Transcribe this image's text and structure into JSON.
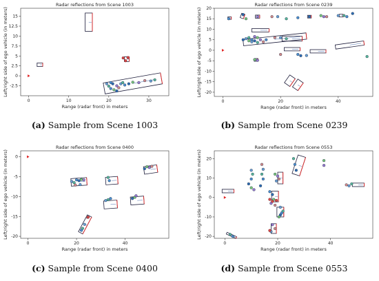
{
  "figure": {
    "captions": [
      {
        "letter": "(a)",
        "text": "Sample from Scene 1003"
      },
      {
        "letter": "(b)",
        "text": "Sample from Scene 0239"
      },
      {
        "letter": "(c)",
        "text": "Sample from Scene 0400"
      },
      {
        "letter": "(d)",
        "text": "Sample from Scene 0553"
      }
    ]
  },
  "chart_data": [
    {
      "type": "scatter",
      "title": "Radar reflections from Scene 1003",
      "xlabel": "Range (radar front) in meters",
      "ylabel": "Left/right side of ego vehicle (in meters)",
      "xlim": [
        -2,
        35
      ],
      "ylim": [
        -5,
        17
      ],
      "xticks": [
        0,
        10,
        20,
        30
      ],
      "yticks": [
        -2.5,
        0,
        2.5,
        5,
        7.5,
        10,
        12.5,
        15
      ],
      "ego": [
        0,
        0
      ],
      "points": [
        [
          19.5,
          -2
        ],
        [
          20,
          -2.6
        ],
        [
          20.5,
          -3.2
        ],
        [
          21,
          -2
        ],
        [
          21.3,
          -3.5
        ],
        [
          22,
          -2.5
        ],
        [
          22.5,
          -3
        ],
        [
          23,
          -2
        ],
        [
          23.5,
          -1.7
        ],
        [
          24,
          -2.3
        ],
        [
          25,
          -2
        ],
        [
          26,
          -1.6
        ],
        [
          27.5,
          -1.7
        ],
        [
          29,
          -1.2
        ],
        [
          30.5,
          -1.3
        ],
        [
          31.5,
          -1
        ],
        [
          20.5,
          -1.7
        ],
        [
          22,
          -3.8
        ]
      ],
      "red_points": [
        [
          23.6,
          4.5
        ],
        [
          24.2,
          3.8
        ],
        [
          24.8,
          4.6
        ]
      ],
      "boxes": [
        {
          "cx": 2.8,
          "cy": 2.8,
          "len": 1.4,
          "wid": 0.9,
          "angle": 0
        },
        {
          "cx": 15,
          "cy": 13.5,
          "len": 1.8,
          "wid": 4.6,
          "angle": 0
        },
        {
          "cx": 24.5,
          "cy": 4.2,
          "len": 1.2,
          "wid": 1.2,
          "angle": 0
        },
        {
          "cx": 26,
          "cy": -1.9,
          "len": 14.5,
          "wid": 2.8,
          "angle": 10
        }
      ]
    },
    {
      "type": "scatter",
      "title": "Radar reflections from Scene 0239",
      "xlabel": "Range (radar front) in meters",
      "ylabel": "Left/right side of ego vehicle (in meters)",
      "xlim": [
        -3,
        52
      ],
      "ylim": [
        -22,
        20
      ],
      "xticks": [
        0,
        20,
        40
      ],
      "yticks": [
        -20,
        -15,
        -10,
        -5,
        0,
        5,
        10,
        15,
        20
      ],
      "ego": [
        0,
        0
      ],
      "points": [
        [
          8,
          5.5
        ],
        [
          9,
          6
        ],
        [
          10,
          5
        ],
        [
          11,
          4.5
        ],
        [
          12,
          6
        ],
        [
          13,
          5
        ],
        [
          14,
          4
        ],
        [
          10,
          4
        ],
        [
          12,
          3.7
        ],
        [
          15,
          5
        ],
        [
          7,
          5
        ],
        [
          9,
          4.5
        ],
        [
          11,
          6.5
        ],
        [
          18,
          6
        ],
        [
          20,
          6
        ],
        [
          22,
          5.5
        ],
        [
          2,
          15
        ],
        [
          7,
          17
        ],
        [
          8,
          15
        ],
        [
          12,
          16
        ],
        [
          17,
          16
        ],
        [
          19,
          16
        ],
        [
          22,
          15
        ],
        [
          26,
          15.5
        ],
        [
          30,
          16
        ],
        [
          34,
          16.5
        ],
        [
          35,
          16
        ],
        [
          36,
          16
        ],
        [
          40,
          16.5
        ],
        [
          42,
          16.5
        ],
        [
          43,
          16
        ],
        [
          45,
          17.5
        ],
        [
          11,
          -4.5
        ],
        [
          12,
          -4.8
        ],
        [
          20,
          -2
        ],
        [
          29,
          -2.5
        ],
        [
          50,
          -3
        ],
        [
          26,
          -2
        ],
        [
          27,
          -2.6
        ]
      ],
      "red_points": [],
      "boxes": [
        {
          "cx": 2.3,
          "cy": 15.3,
          "len": 1.2,
          "wid": 1.2,
          "angle": 0
        },
        {
          "cx": 6.8,
          "cy": 16.3,
          "len": 1.2,
          "wid": 2.2,
          "angle": -20
        },
        {
          "cx": 12,
          "cy": 16,
          "len": 1.5,
          "wid": 1.5,
          "angle": 0
        },
        {
          "cx": 13,
          "cy": 9.5,
          "len": 6,
          "wid": 1.6,
          "angle": 0
        },
        {
          "cx": 18,
          "cy": 5.2,
          "len": 22,
          "wid": 3,
          "angle": 6
        },
        {
          "cx": 24,
          "cy": 5.5,
          "len": 7,
          "wid": 2.3,
          "angle": 0
        },
        {
          "cx": 24,
          "cy": 0.5,
          "len": 5.5,
          "wid": 1.6,
          "angle": 0
        },
        {
          "cx": 33,
          "cy": -0.5,
          "len": 5.5,
          "wid": 1.6,
          "angle": 0
        },
        {
          "cx": 44,
          "cy": 2.5,
          "len": 10,
          "wid": 2,
          "angle": 8
        },
        {
          "cx": 23.2,
          "cy": -14.5,
          "len": 2.3,
          "wid": 4.5,
          "angle": -35
        },
        {
          "cx": 26,
          "cy": -16.5,
          "len": 2.3,
          "wid": 4.5,
          "angle": -35
        },
        {
          "cx": 30,
          "cy": 16,
          "len": 1.3,
          "wid": 1.3,
          "angle": 0
        },
        {
          "cx": 41,
          "cy": 16.5,
          "len": 1.3,
          "wid": 1.3,
          "angle": 0
        },
        {
          "cx": 11.5,
          "cy": -4.6,
          "len": 1.3,
          "wid": 1.3,
          "angle": 0
        }
      ]
    },
    {
      "type": "scatter",
      "title": "Radar reflections from Scene 0400",
      "xlabel": "Range (radar front) in meters",
      "ylabel": "Left/right side of ego vehicle (in meters)",
      "xlim": [
        -3,
        58
      ],
      "ylim": [
        -20.5,
        1.5
      ],
      "xticks": [
        0,
        20,
        40
      ],
      "yticks": [
        -20,
        -15,
        -10,
        -5,
        0
      ],
      "ego": [
        0,
        0
      ],
      "points": [
        [
          18,
          -6.2
        ],
        [
          19,
          -6.5
        ],
        [
          20,
          -5.8
        ],
        [
          21,
          -6.0
        ],
        [
          22,
          -5.7
        ],
        [
          23,
          -5.8
        ],
        [
          19.5,
          -7.1
        ],
        [
          21.5,
          -7.0
        ],
        [
          33,
          -5.2
        ],
        [
          33.5,
          -6.0
        ],
        [
          48,
          -3
        ],
        [
          49,
          -2.5
        ],
        [
          50,
          -2.7
        ],
        [
          51,
          -2.4
        ],
        [
          32,
          -11
        ],
        [
          33,
          -10.8
        ],
        [
          34,
          -10.5
        ],
        [
          43,
          -10.5
        ],
        [
          44,
          -10.2
        ],
        [
          44.5,
          -9.8
        ],
        [
          24.5,
          -15.2
        ],
        [
          23.3,
          -17
        ],
        [
          22.5,
          -18
        ],
        [
          22,
          -18.5
        ]
      ],
      "red_points": [
        [
          24.8,
          -15.2
        ]
      ],
      "boxes": [
        {
          "cx": 21,
          "cy": -6.3,
          "len": 6.5,
          "wid": 1.9,
          "angle": 4
        },
        {
          "cx": 34.5,
          "cy": -6.0,
          "len": 5,
          "wid": 1.9,
          "angle": 4
        },
        {
          "cx": 50.5,
          "cy": -3.2,
          "len": 5.5,
          "wid": 1.9,
          "angle": 8
        },
        {
          "cx": 34,
          "cy": -12,
          "len": 5.5,
          "wid": 2,
          "angle": 4
        },
        {
          "cx": 45,
          "cy": -11,
          "len": 5.5,
          "wid": 2,
          "angle": 4
        },
        {
          "cx": 23.5,
          "cy": -17,
          "len": 2,
          "wid": 4.8,
          "angle": -28
        }
      ]
    },
    {
      "type": "scatter",
      "title": "Radar reflections from Scene 0553",
      "xlabel": "Range (radar front) in meters",
      "ylabel": "Left/right side of ego vehicle (in meters)",
      "xlim": [
        -4,
        56
      ],
      "ylim": [
        -21,
        24
      ],
      "xticks": [
        0,
        20,
        40
      ],
      "yticks": [
        -20,
        -10,
        0,
        10,
        20
      ],
      "ego": [
        0,
        0
      ],
      "points": [
        [
          10,
          14
        ],
        [
          10.5,
          12
        ],
        [
          10,
          9.5
        ],
        [
          9,
          7
        ],
        [
          10,
          5
        ],
        [
          11,
          4
        ],
        [
          14,
          17
        ],
        [
          14.5,
          14.5
        ],
        [
          14,
          12
        ],
        [
          14.5,
          9.5
        ],
        [
          13.5,
          6
        ],
        [
          19,
          12
        ],
        [
          20,
          11
        ],
        [
          20.5,
          9.5
        ],
        [
          19.5,
          8.5
        ],
        [
          26,
          20
        ],
        [
          26.5,
          17
        ],
        [
          27,
          14
        ],
        [
          37.5,
          19
        ],
        [
          37.5,
          16.5
        ],
        [
          46,
          6.5
        ],
        [
          47,
          6
        ],
        [
          48,
          7
        ],
        [
          17,
          3
        ],
        [
          18,
          1.5
        ],
        [
          18.5,
          -1
        ],
        [
          17.5,
          -3
        ],
        [
          19,
          -4
        ],
        [
          21,
          -5
        ],
        [
          22,
          -7
        ],
        [
          21.5,
          -8
        ],
        [
          21,
          -9
        ],
        [
          20.5,
          -10
        ],
        [
          18,
          -14
        ],
        [
          19,
          -16
        ],
        [
          17.5,
          -17.5
        ],
        [
          2,
          -19
        ],
        [
          3,
          -20
        ]
      ],
      "red_points": [
        [
          17,
          -1
        ],
        [
          18,
          -2
        ],
        [
          19.5,
          -1.5
        ],
        [
          17,
          -17
        ]
      ],
      "boxes": [
        {
          "cx": 1.2,
          "cy": 3.3,
          "len": 4.5,
          "wid": 1.8,
          "angle": 0
        },
        {
          "cx": 28,
          "cy": 16.5,
          "len": 3,
          "wid": 10,
          "angle": -18
        },
        {
          "cx": 21,
          "cy": 10,
          "len": 2,
          "wid": 6,
          "angle": 0
        },
        {
          "cx": 19,
          "cy": 0.5,
          "len": 2.6,
          "wid": 5.5,
          "angle": 0
        },
        {
          "cx": 21,
          "cy": -7.5,
          "len": 2.6,
          "wid": 5,
          "angle": 0
        },
        {
          "cx": 18.5,
          "cy": -16,
          "len": 2,
          "wid": 5,
          "angle": 0
        },
        {
          "cx": 50.5,
          "cy": 6.5,
          "len": 4.5,
          "wid": 1.8,
          "angle": 0
        },
        {
          "cx": 2.5,
          "cy": -19.5,
          "len": 4,
          "wid": 1,
          "angle": -25
        }
      ]
    }
  ]
}
